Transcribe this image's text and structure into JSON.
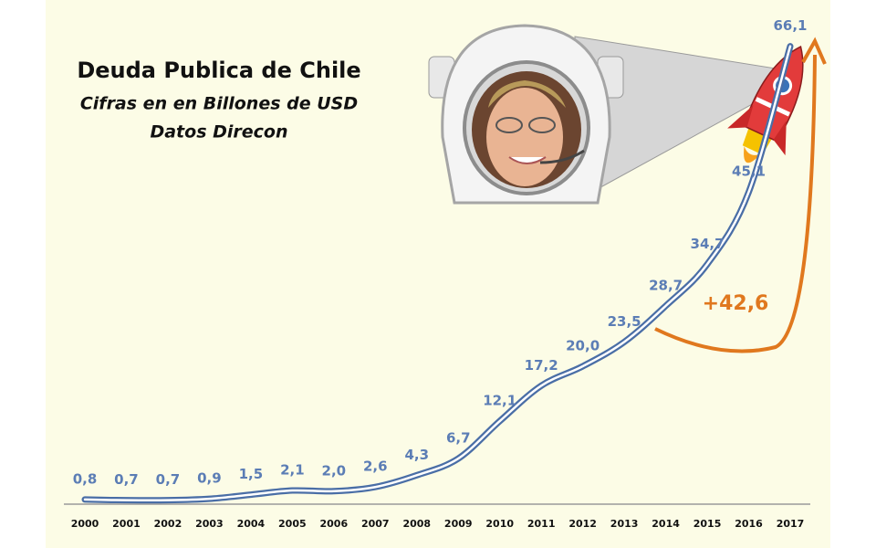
{
  "chart_data": {
    "type": "line",
    "title": "Deuda Publica de Chile",
    "subtitle": [
      "Cifras en en Billones de USD",
      "Datos Direcon"
    ],
    "annotation": "+42,6",
    "categories": [
      "2000",
      "2001",
      "2002",
      "2003",
      "2004",
      "2005",
      "2006",
      "2007",
      "2008",
      "2009",
      "2010",
      "2011",
      "2012",
      "2013",
      "2014",
      "2015",
      "2016",
      "2017"
    ],
    "values": [
      0.8,
      0.7,
      0.7,
      0.9,
      1.5,
      2.1,
      2.0,
      2.6,
      4.3,
      6.7,
      12.1,
      17.2,
      20.0,
      23.5,
      28.7,
      34.7,
      45.1,
      66.1
    ],
    "value_labels": [
      "0,8",
      "0,7",
      "0,7",
      "0,9",
      "1,5",
      "2,1",
      "2,0",
      "2,6",
      "4,3",
      "6,7",
      "12,1",
      "17,2",
      "20,0",
      "23,5",
      "28,7",
      "34,7",
      "45,1",
      "66,1"
    ],
    "color": "#4a6ea6",
    "label_color": "#5b7db5",
    "annotation_color": "#e0781e"
  }
}
